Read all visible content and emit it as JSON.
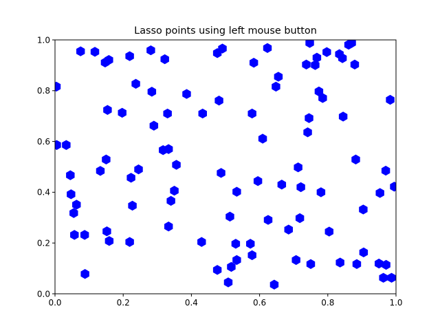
{
  "chart_data": {
    "type": "scatter",
    "title": "Lasso points using left mouse button",
    "xlabel": "",
    "ylabel": "",
    "xlim": [
      0,
      1
    ],
    "ylim": [
      0,
      1
    ],
    "xticks": [
      "0.0",
      "0.2",
      "0.4",
      "0.6",
      "0.8",
      "1.0"
    ],
    "yticks": [
      "0.0",
      "0.2",
      "0.4",
      "0.6",
      "0.8",
      "1.0"
    ],
    "grid": false,
    "marker": "hexagon",
    "color": "#0000ff",
    "points": [
      [
        0.004,
        0.816
      ],
      [
        0.005,
        0.586
      ],
      [
        0.033,
        0.586
      ],
      [
        0.045,
        0.467
      ],
      [
        0.047,
        0.392
      ],
      [
        0.055,
        0.318
      ],
      [
        0.057,
        0.232
      ],
      [
        0.063,
        0.351
      ],
      [
        0.075,
        0.955
      ],
      [
        0.087,
        0.232
      ],
      [
        0.088,
        0.078
      ],
      [
        0.117,
        0.953
      ],
      [
        0.133,
        0.484
      ],
      [
        0.147,
        0.911
      ],
      [
        0.15,
        0.529
      ],
      [
        0.152,
        0.246
      ],
      [
        0.154,
        0.724
      ],
      [
        0.158,
        0.921
      ],
      [
        0.159,
        0.208
      ],
      [
        0.197,
        0.713
      ],
      [
        0.219,
        0.936
      ],
      [
        0.219,
        0.204
      ],
      [
        0.223,
        0.457
      ],
      [
        0.227,
        0.347
      ],
      [
        0.237,
        0.827
      ],
      [
        0.245,
        0.49
      ],
      [
        0.281,
        0.959
      ],
      [
        0.284,
        0.796
      ],
      [
        0.29,
        0.662
      ],
      [
        0.317,
        0.566
      ],
      [
        0.322,
        0.924
      ],
      [
        0.33,
        0.71
      ],
      [
        0.333,
        0.57
      ],
      [
        0.333,
        0.265
      ],
      [
        0.34,
        0.366
      ],
      [
        0.35,
        0.406
      ],
      [
        0.356,
        0.508
      ],
      [
        0.386,
        0.787
      ],
      [
        0.43,
        0.204
      ],
      [
        0.433,
        0.71
      ],
      [
        0.476,
        0.948
      ],
      [
        0.476,
        0.094
      ],
      [
        0.481,
        0.761
      ],
      [
        0.487,
        0.476
      ],
      [
        0.491,
        0.966
      ],
      [
        0.508,
        0.045
      ],
      [
        0.513,
        0.304
      ],
      [
        0.517,
        0.106
      ],
      [
        0.53,
        0.197
      ],
      [
        0.533,
        0.133
      ],
      [
        0.533,
        0.402
      ],
      [
        0.573,
        0.197
      ],
      [
        0.578,
        0.71
      ],
      [
        0.578,
        0.152
      ],
      [
        0.583,
        0.91
      ],
      [
        0.595,
        0.444
      ],
      [
        0.609,
        0.611
      ],
      [
        0.623,
        0.968
      ],
      [
        0.625,
        0.291
      ],
      [
        0.643,
        0.036
      ],
      [
        0.648,
        0.816
      ],
      [
        0.655,
        0.855
      ],
      [
        0.665,
        0.43
      ],
      [
        0.685,
        0.253
      ],
      [
        0.707,
        0.133
      ],
      [
        0.713,
        0.498
      ],
      [
        0.718,
        0.298
      ],
      [
        0.721,
        0.42
      ],
      [
        0.737,
        0.903
      ],
      [
        0.741,
        0.636
      ],
      [
        0.745,
        0.692
      ],
      [
        0.747,
        0.988
      ],
      [
        0.75,
        0.117
      ],
      [
        0.763,
        0.901
      ],
      [
        0.768,
        0.93
      ],
      [
        0.774,
        0.797
      ],
      [
        0.78,
        0.4
      ],
      [
        0.785,
        0.771
      ],
      [
        0.797,
        0.952
      ],
      [
        0.804,
        0.245
      ],
      [
        0.834,
        0.944
      ],
      [
        0.836,
        0.123
      ],
      [
        0.843,
        0.928
      ],
      [
        0.845,
        0.698
      ],
      [
        0.861,
        0.981
      ],
      [
        0.87,
        0.988
      ],
      [
        0.879,
        0.903
      ],
      [
        0.882,
        0.529
      ],
      [
        0.885,
        0.117
      ],
      [
        0.904,
        0.332
      ],
      [
        0.905,
        0.163
      ],
      [
        0.95,
        0.119
      ],
      [
        0.953,
        0.397
      ],
      [
        0.963,
        0.063
      ],
      [
        0.97,
        0.485
      ],
      [
        0.971,
        0.114
      ],
      [
        0.983,
        0.764
      ],
      [
        0.987,
        0.063
      ],
      [
        0.995,
        0.422
      ]
    ]
  }
}
